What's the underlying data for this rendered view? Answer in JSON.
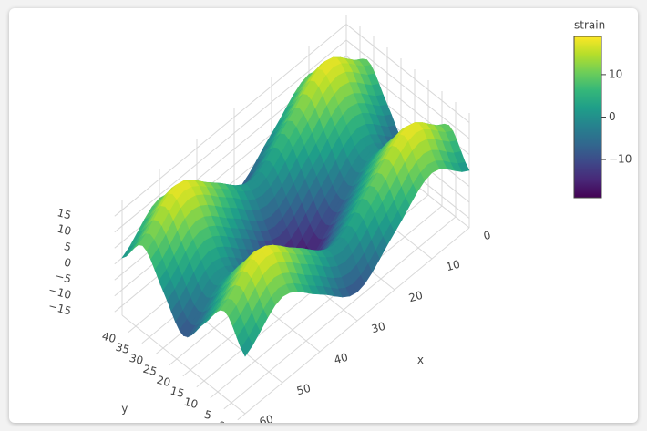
{
  "chart_data": {
    "type": "surface",
    "x": [
      0,
      10,
      20,
      30,
      40,
      50,
      60
    ],
    "y": [
      0,
      7.5,
      15,
      22.5,
      30,
      37.5,
      45
    ],
    "z": [
      [
        0,
        9,
        0,
        -9,
        0,
        9,
        0
      ],
      [
        9,
        18,
        9,
        0,
        9,
        18,
        9
      ],
      [
        0,
        9,
        0,
        -9,
        0,
        9,
        0
      ],
      [
        -9,
        0,
        -9,
        -18,
        -9,
        0,
        -9
      ],
      [
        0,
        9,
        0,
        -9,
        0,
        9,
        0
      ],
      [
        9,
        18,
        9,
        0,
        9,
        18,
        9
      ],
      [
        0,
        9,
        0,
        -9,
        0,
        9,
        0
      ]
    ],
    "xlim": [
      0,
      62
    ],
    "ylim": [
      0,
      45
    ],
    "zlim": [
      -18,
      18
    ],
    "xticks": [
      0,
      10,
      20,
      30,
      40,
      50,
      60
    ],
    "yticks": [
      0,
      5,
      10,
      15,
      20,
      25,
      30,
      35,
      40
    ],
    "zticks": [
      {
        "value": -15,
        "label": "−15"
      },
      {
        "value": -10,
        "label": "−10"
      },
      {
        "value": -5,
        "label": "−5"
      },
      0,
      5,
      10,
      15
    ],
    "x_label": "x",
    "y_label": "y",
    "colorscale": [
      "#440154",
      "#482878",
      "#3e4989",
      "#31688e",
      "#26828e",
      "#1f9e89",
      "#35b779",
      "#6ece58",
      "#b5de2b",
      "#fde725"
    ],
    "colorbar": {
      "title": "strain",
      "clim": [
        -19,
        19
      ],
      "ticks": [
        {
          "value": -10,
          "label": "−10"
        },
        0,
        10
      ]
    }
  }
}
